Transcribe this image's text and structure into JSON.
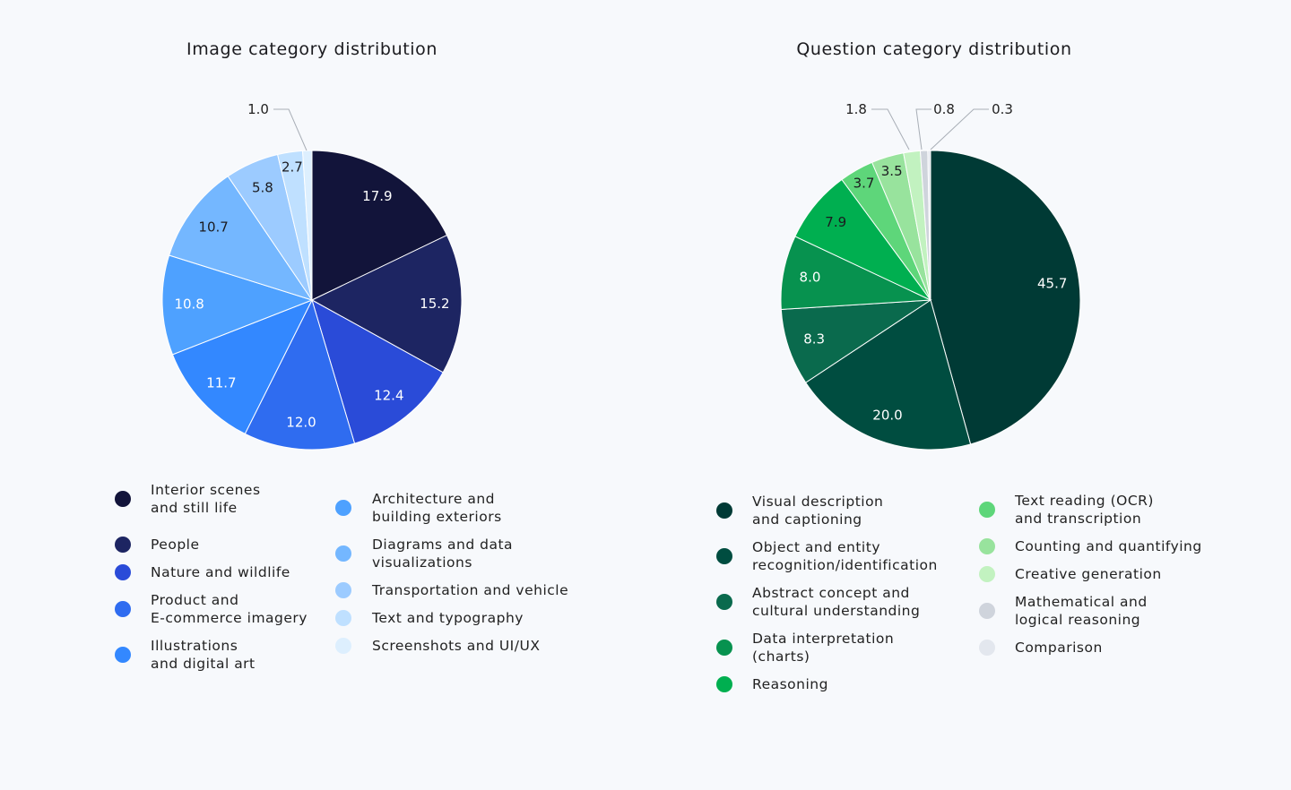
{
  "chart_data": [
    {
      "type": "pie",
      "title": "Image category distribution",
      "categories": [
        "Interior scenes\nand still life",
        "People",
        "Nature and wildlife",
        "Product and\nE-commerce imagery",
        "Illustrations\nand digital art",
        "Architecture and\nbuilding exteriors",
        "Diagrams and data\nvisualizations",
        "Transportation and vehicle",
        "Text and typography",
        "Screenshots and UI/UX"
      ],
      "values": [
        17.9,
        15.2,
        12.4,
        12.0,
        11.7,
        10.8,
        10.7,
        5.8,
        2.7,
        1.0
      ],
      "labels": [
        "17.9",
        "15.2",
        "12.4",
        "12.0",
        "11.7",
        "10.8",
        "10.7",
        "5.8",
        "2.7",
        "1.0"
      ],
      "colors": [
        "#12143a",
        "#1d2562",
        "#2a4bd8",
        "#2f6cf0",
        "#3388ff",
        "#4ea1ff",
        "#74b7ff",
        "#9ccbff",
        "#bfe0ff",
        "#ddeffe"
      ],
      "legend": "bottom"
    },
    {
      "type": "pie",
      "title": "Question category distribution",
      "categories": [
        "Visual description\nand captioning",
        "Object and entity\nrecognition/identification",
        "Abstract concept and\ncultural understanding",
        "Data interpretation\n(charts)",
        "Reasoning",
        "Text reading (OCR)\nand transcription",
        "Counting and quantifying",
        "Creative generation",
        "Mathematical and\nlogical reasoning",
        "Comparison"
      ],
      "values": [
        45.7,
        20.0,
        8.3,
        8.0,
        7.9,
        3.7,
        3.5,
        1.8,
        0.8,
        0.3
      ],
      "labels": [
        "45.7",
        "20.0",
        "8.3",
        "8.0",
        "7.9",
        "3.7",
        "3.5",
        "1.8",
        "0.8",
        "0.3"
      ],
      "colors": [
        "#003a35",
        "#004d40",
        "#0a6a4d",
        "#07924f",
        "#00af50",
        "#5ed67a",
        "#98e39d",
        "#c2f2c0",
        "#cfd4dc",
        "#e3e7ee"
      ],
      "legend": "bottom"
    }
  ]
}
